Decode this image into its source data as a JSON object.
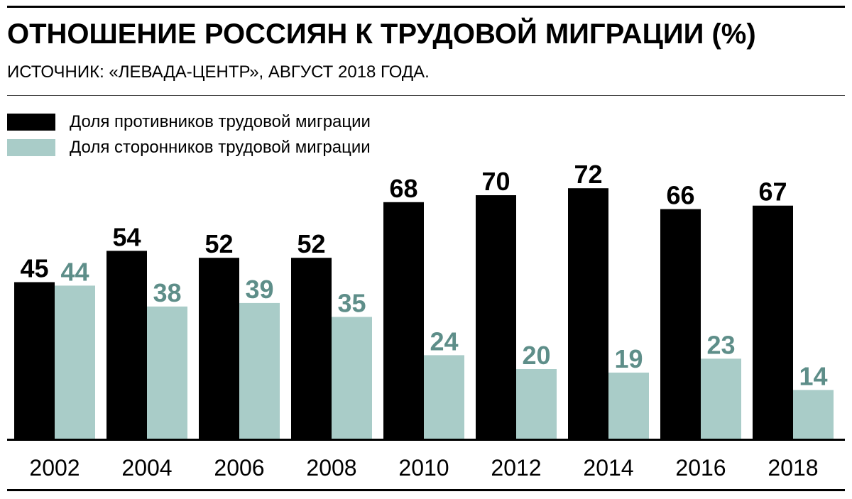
{
  "header": {
    "title": "ОТНОШЕНИЕ РОССИЯН К ТРУДОВОЙ МИГРАЦИИ (%)",
    "subtitle": "ИСТОЧНИК: «ЛЕВАДА-ЦЕНТР», АВГУСТ 2018 ГОДА."
  },
  "colors": {
    "opponents": "#000000",
    "supporters": "#a9ccc8",
    "supporters_label": "#5e8e89"
  },
  "chart_data": {
    "type": "bar",
    "title": "ОТНОШЕНИЕ РОССИЯН К ТРУДОВОЙ МИГРАЦИИ (%)",
    "xlabel": "",
    "ylabel": "",
    "ylim": [
      0,
      80
    ],
    "grid": false,
    "legend_position": "top-left",
    "categories": [
      "2002",
      "2004",
      "2006",
      "2008",
      "2010",
      "2012",
      "2014",
      "2016",
      "2018"
    ],
    "series": [
      {
        "name": "Доля противников трудовой миграции",
        "values": [
          45,
          54,
          52,
          52,
          68,
          70,
          72,
          66,
          67
        ]
      },
      {
        "name": "Доля сторонников трудовой миграции",
        "values": [
          44,
          38,
          39,
          35,
          24,
          20,
          19,
          23,
          14
        ]
      }
    ]
  }
}
